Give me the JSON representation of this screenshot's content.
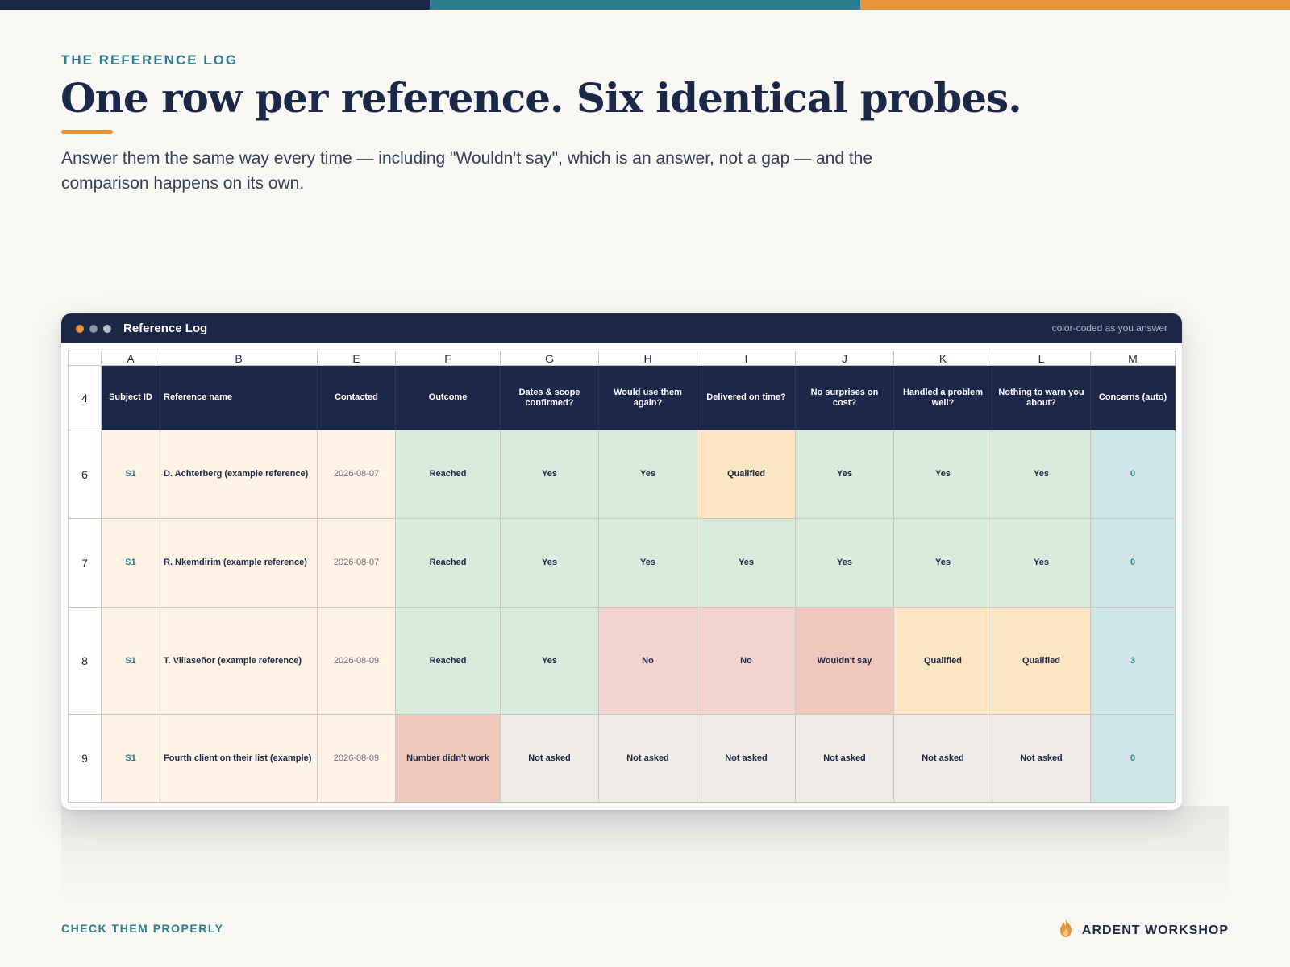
{
  "colors": {
    "navy": "#1b2847",
    "teal": "#2e7d8f",
    "orange": "#e8953a",
    "background": "#f9f7f3"
  },
  "header": {
    "eyebrow": "THE REFERENCE LOG",
    "title": "One row per reference. Six identical probes.",
    "subtitle": "Answer them the same way every time — including \"Wouldn't say\", which is an answer, not a gap — and the comparison happens on its own."
  },
  "window": {
    "title": "Reference Log",
    "note": "color-coded as you answer"
  },
  "sheet": {
    "column_letters": [
      "A",
      "B",
      "E",
      "F",
      "G",
      "H",
      "I",
      "J",
      "K",
      "L",
      "M"
    ],
    "header_row_number": "4",
    "headers": [
      "Subject ID",
      "Reference name",
      "Contacted",
      "Outcome",
      "Dates & scope confirmed?",
      "Would use them again?",
      "Delivered on time?",
      "No surprises on cost?",
      "Handled a problem well?",
      "Nothing to warn you about?",
      "Concerns (auto)"
    ],
    "rows": [
      {
        "num": "6",
        "cells": [
          "S1",
          "D. Achterberg (example reference)",
          "2026-08-07",
          "Reached",
          "Yes",
          "Yes",
          "Qualified",
          "Yes",
          "Yes",
          "Yes",
          "0"
        ]
      },
      {
        "num": "7",
        "cells": [
          "S1",
          "R. Nkemdirim (example reference)",
          "2026-08-07",
          "Reached",
          "Yes",
          "Yes",
          "Yes",
          "Yes",
          "Yes",
          "Yes",
          "0"
        ]
      },
      {
        "num": "8",
        "cells": [
          "S1",
          "T. Villaseñor (example reference)",
          "2026-08-09",
          "Reached",
          "Yes",
          "No",
          "No",
          "Wouldn't say",
          "Qualified",
          "Qualified",
          "3"
        ]
      },
      {
        "num": "9",
        "cells": [
          "S1",
          "Fourth client on their list (example)",
          "2026-08-09",
          "Number didn't work",
          "Not asked",
          "Not asked",
          "Not asked",
          "Not asked",
          "Not asked",
          "Not asked",
          "0"
        ]
      }
    ]
  },
  "footer": {
    "left": "CHECK THEM PROPERLY",
    "brand": "ARDENT WORKSHOP",
    "brand_icon": "flame-icon"
  }
}
